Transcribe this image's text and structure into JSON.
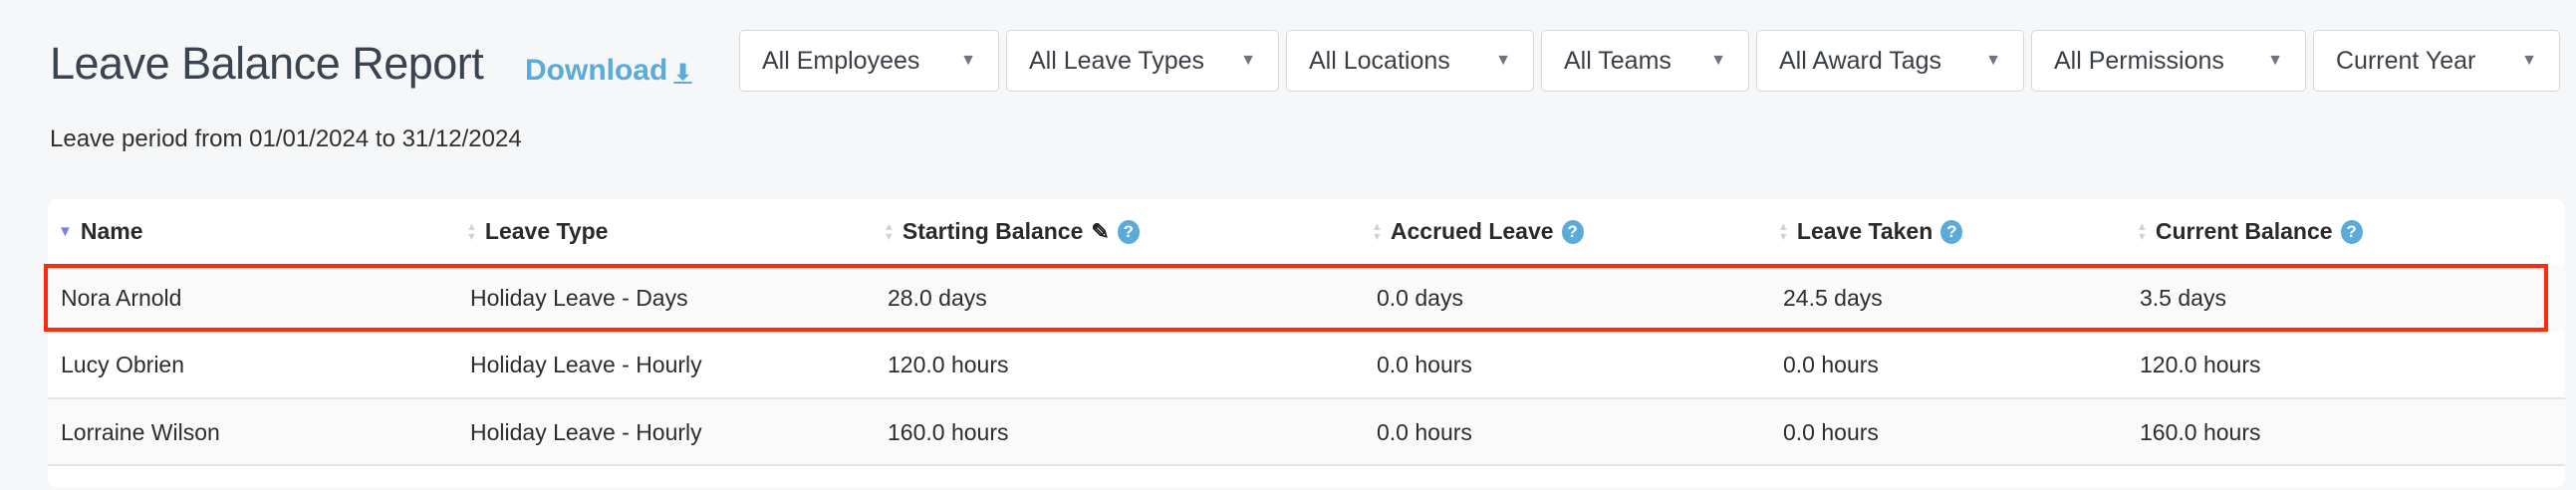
{
  "header": {
    "title": "Leave Balance Report",
    "download_label": "Download",
    "download_icon": "download-arrow-icon"
  },
  "filters": [
    {
      "label": "All Employees"
    },
    {
      "label": "All Leave Types"
    },
    {
      "label": "All Locations"
    },
    {
      "label": "All Teams"
    },
    {
      "label": "All Award Tags"
    },
    {
      "label": "All Permissions"
    },
    {
      "label": "Current Year"
    }
  ],
  "period": "Leave period from 01/01/2024 to 31/12/2024",
  "table": {
    "columns": [
      {
        "label": "Name",
        "sort": "descending"
      },
      {
        "label": "Leave Type"
      },
      {
        "label": "Starting Balance",
        "editable": true,
        "help": true
      },
      {
        "label": "Accrued Leave",
        "help": true
      },
      {
        "label": "Leave Taken",
        "help": true
      },
      {
        "label": "Current Balance",
        "help": true
      }
    ],
    "rows": [
      [
        "Nora Arnold",
        "Holiday Leave - Days",
        "28.0 days",
        "0.0 days",
        "24.5 days",
        "3.5 days"
      ],
      [
        "Lucy Obrien",
        "Holiday Leave - Hourly",
        "120.0 hours",
        "0.0 hours",
        "0.0 hours",
        "120.0 hours"
      ],
      [
        "Lorraine Wilson",
        "Holiday Leave - Hourly",
        "160.0 hours",
        "0.0 hours",
        "0.0 hours",
        "160.0 hours"
      ]
    ],
    "highlighted_row": 0
  },
  "colors": {
    "accent": "#5aabd9",
    "highlight": "#ff2a0d",
    "sort_active": "#7b7fe0"
  }
}
